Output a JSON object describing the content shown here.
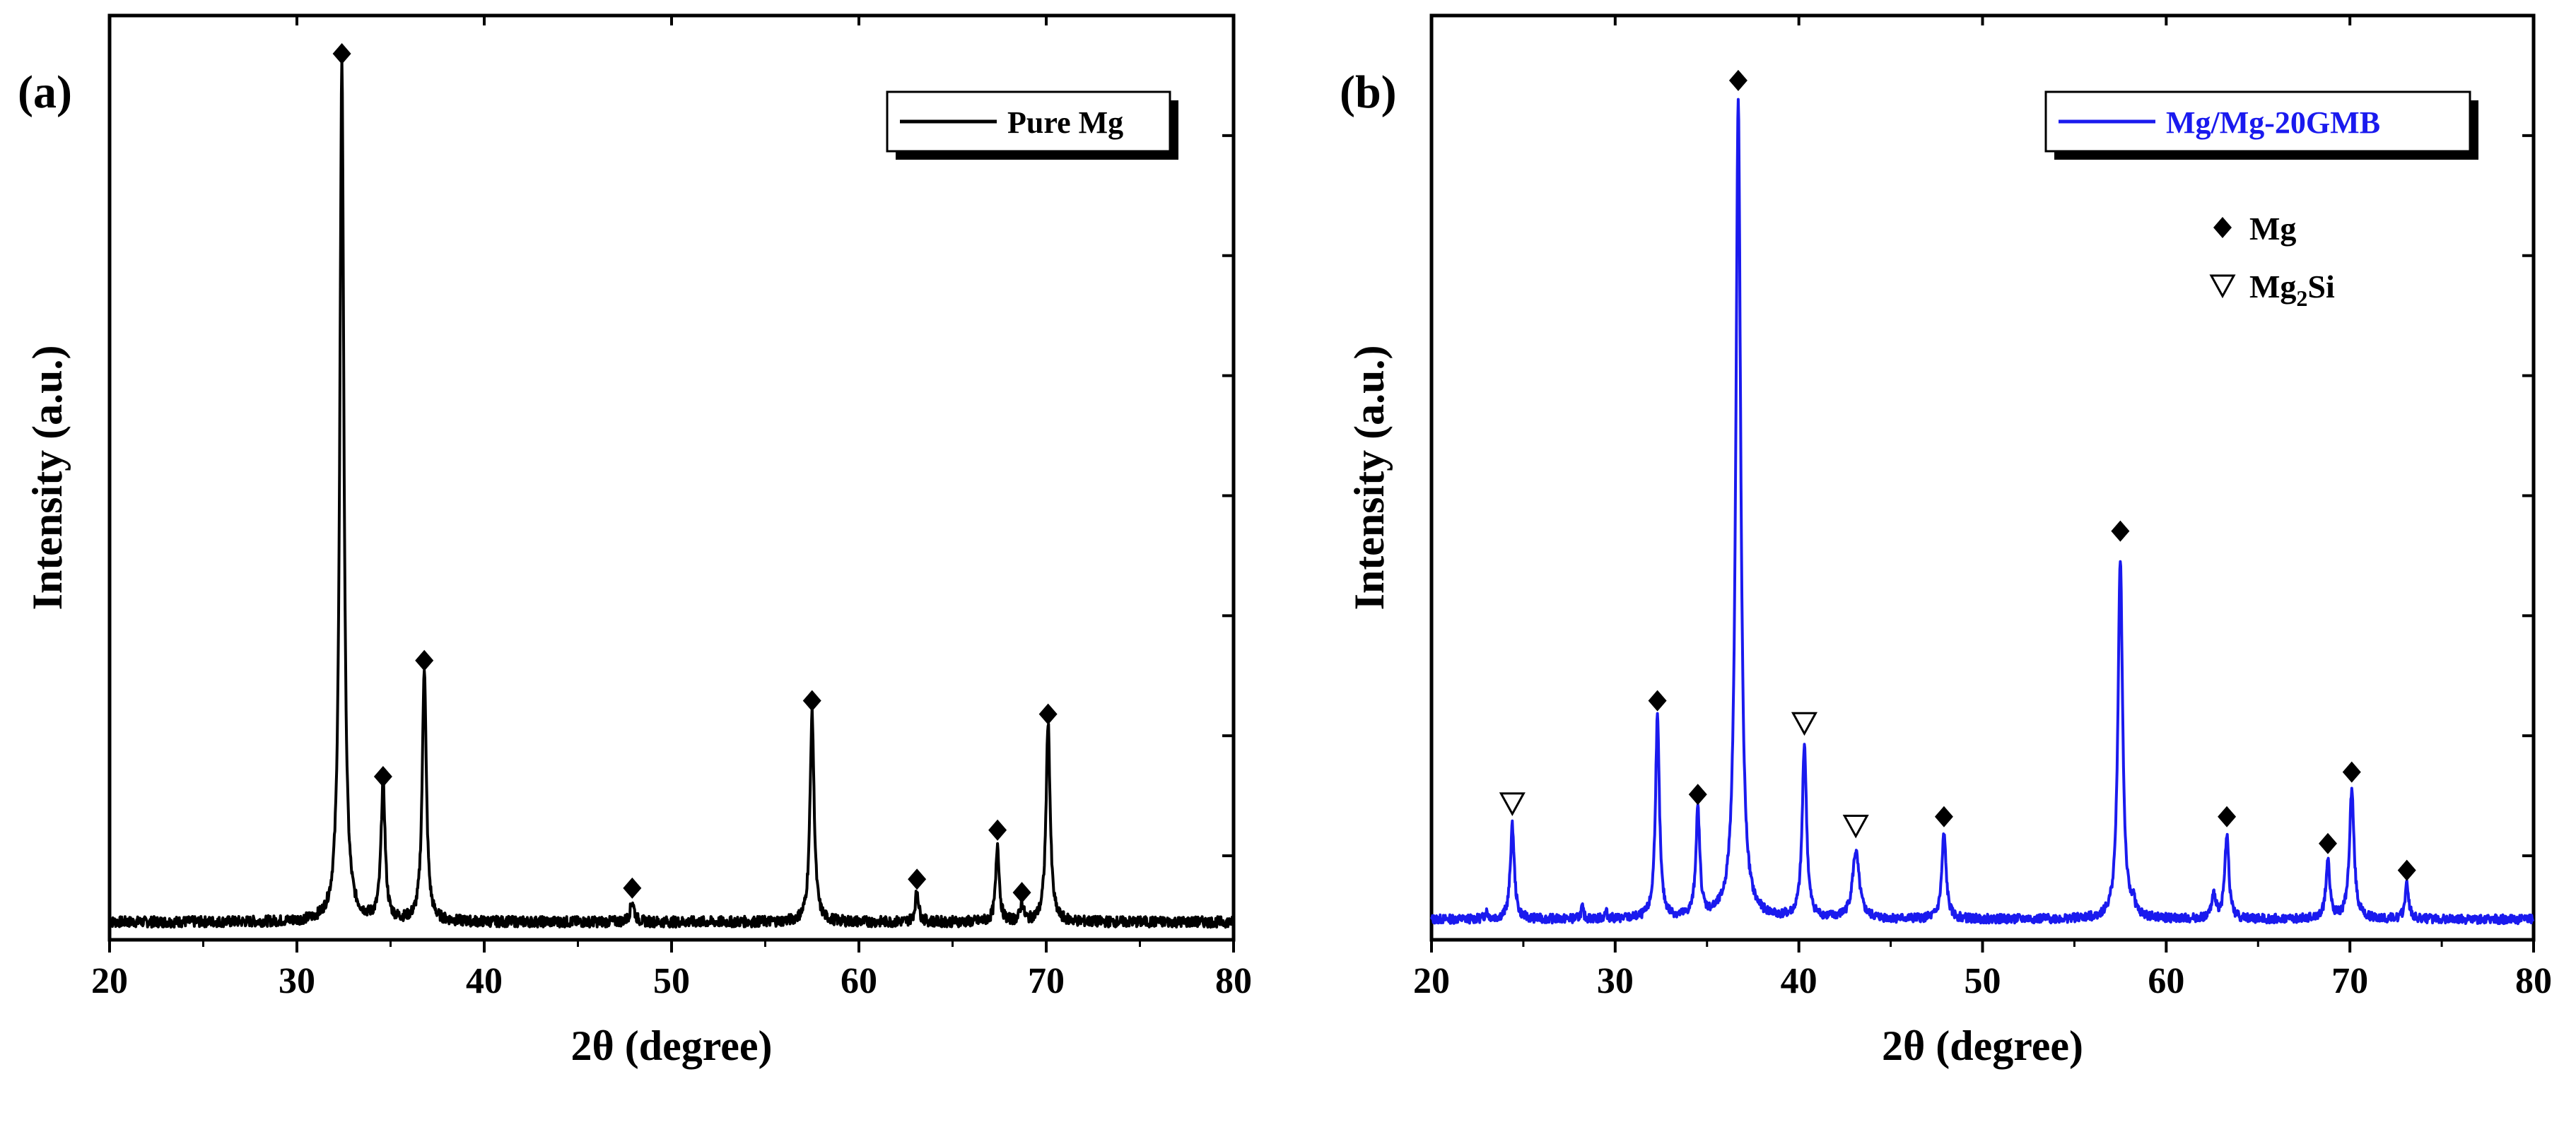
{
  "chart_data": [
    {
      "panel_label": "(a)",
      "type": "line",
      "title": "",
      "xlabel": "2θ (degree)",
      "ylabel": "Intensity (a.u.)",
      "xlim": [
        20,
        80
      ],
      "ylim": [
        0,
        100
      ],
      "xticks": [
        20,
        30,
        40,
        50,
        60,
        70,
        80
      ],
      "legend": {
        "label": "Pure Mg",
        "position": "top-right"
      },
      "color": "#000000",
      "baseline": 1.2,
      "noise": 0.6,
      "peaks": [
        {
          "x": 32.4,
          "height": 96.5,
          "width": 0.13
        },
        {
          "x": 34.6,
          "height": 15.5,
          "width": 0.13
        },
        {
          "x": 36.8,
          "height": 28.5,
          "width": 0.13
        },
        {
          "x": 47.9,
          "height": 2.3,
          "width": 0.13
        },
        {
          "x": 57.5,
          "height": 23.5,
          "width": 0.13
        },
        {
          "x": 63.1,
          "height": 3.5,
          "width": 0.11
        },
        {
          "x": 67.4,
          "height": 8.7,
          "width": 0.11
        },
        {
          "x": 68.7,
          "height": 2.0,
          "width": 0.11
        },
        {
          "x": 70.1,
          "height": 22.5,
          "width": 0.13
        }
      ],
      "markers": [
        {
          "x": 32.4,
          "y": 98.5,
          "phase": "Mg"
        },
        {
          "x": 34.6,
          "y": 17.5,
          "phase": "Mg"
        },
        {
          "x": 36.8,
          "y": 30.5,
          "phase": "Mg"
        },
        {
          "x": 47.9,
          "y": 5.0,
          "phase": "Mg"
        },
        {
          "x": 57.5,
          "y": 26.0,
          "phase": "Mg"
        },
        {
          "x": 63.1,
          "y": 6.0,
          "phase": "Mg"
        },
        {
          "x": 67.4,
          "y": 11.5,
          "phase": "Mg"
        },
        {
          "x": 68.7,
          "y": 4.5,
          "phase": "Mg"
        },
        {
          "x": 70.1,
          "y": 24.5,
          "phase": "Mg"
        }
      ]
    },
    {
      "panel_label": "(b)",
      "type": "line",
      "title": "",
      "xlabel": "2θ (degree)",
      "ylabel": "Intensity (a.u.)",
      "xlim": [
        20,
        80
      ],
      "ylim": [
        0,
        100
      ],
      "xticks": [
        20,
        30,
        40,
        50,
        60,
        70,
        80
      ],
      "legend": {
        "label": "Mg/Mg-20GMB",
        "position": "top-right"
      },
      "phase_key": [
        {
          "symbol": "diamond",
          "label": "Mg",
          "subscript": ""
        },
        {
          "symbol": "triangle",
          "label": "Mg",
          "subscript": "2",
          "suffix": "Si"
        }
      ],
      "color": "#1a1aee",
      "baseline": 1.5,
      "noise": 0.5,
      "peaks": [
        {
          "x": 23.0,
          "height": 0.8,
          "width": 0.1
        },
        {
          "x": 24.4,
          "height": 10.5,
          "width": 0.13
        },
        {
          "x": 28.2,
          "height": 1.3,
          "width": 0.08
        },
        {
          "x": 29.5,
          "height": 0.8,
          "width": 0.08
        },
        {
          "x": 32.3,
          "height": 22.5,
          "width": 0.13
        },
        {
          "x": 34.5,
          "height": 12.0,
          "width": 0.13
        },
        {
          "x": 36.7,
          "height": 91.5,
          "width": 0.16
        },
        {
          "x": 40.3,
          "height": 19.5,
          "width": 0.14
        },
        {
          "x": 43.1,
          "height": 7.5,
          "width": 0.22
        },
        {
          "x": 47.9,
          "height": 9.5,
          "width": 0.14
        },
        {
          "x": 57.5,
          "height": 40.5,
          "width": 0.15
        },
        {
          "x": 58.2,
          "height": 1.5,
          "width": 0.1
        },
        {
          "x": 62.6,
          "height": 2.5,
          "width": 0.15
        },
        {
          "x": 63.3,
          "height": 9.5,
          "width": 0.13
        },
        {
          "x": 68.8,
          "height": 6.5,
          "width": 0.13
        },
        {
          "x": 70.1,
          "height": 14.5,
          "width": 0.15
        },
        {
          "x": 73.1,
          "height": 4.0,
          "width": 0.12
        }
      ],
      "markers": [
        {
          "x": 24.4,
          "y": 14.5,
          "phase": "Mg2Si"
        },
        {
          "x": 32.3,
          "y": 26.0,
          "phase": "Mg"
        },
        {
          "x": 34.5,
          "y": 15.5,
          "phase": "Mg"
        },
        {
          "x": 36.7,
          "y": 95.5,
          "phase": "Mg"
        },
        {
          "x": 40.3,
          "y": 23.5,
          "phase": "Mg2Si"
        },
        {
          "x": 43.1,
          "y": 12.0,
          "phase": "Mg2Si"
        },
        {
          "x": 47.9,
          "y": 13.0,
          "phase": "Mg"
        },
        {
          "x": 57.5,
          "y": 45.0,
          "phase": "Mg"
        },
        {
          "x": 63.3,
          "y": 13.0,
          "phase": "Mg"
        },
        {
          "x": 68.8,
          "y": 10.0,
          "phase": "Mg"
        },
        {
          "x": 70.1,
          "y": 18.0,
          "phase": "Mg"
        },
        {
          "x": 73.1,
          "y": 7.0,
          "phase": "Mg"
        }
      ]
    }
  ]
}
